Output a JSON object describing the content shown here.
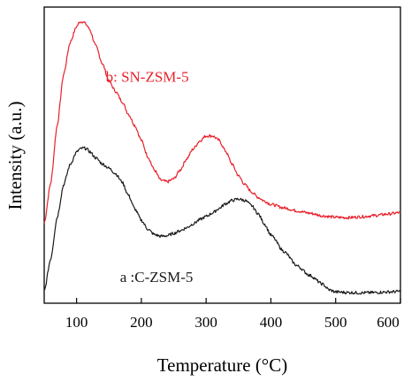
{
  "chart_data": {
    "type": "line",
    "xlabel": "Temperature (°C)",
    "ylabel": "Intensity (a.u.)",
    "xlim": [
      50,
      600
    ],
    "ylim": [
      0,
      1
    ],
    "x_ticks": [
      "100",
      "200",
      "300",
      "400",
      "500",
      "600"
    ],
    "y_ticks_shown": false,
    "grid": false,
    "series": [
      {
        "name": "b: SN-ZSM-5",
        "color": "#e8202a",
        "points": [
          [
            50,
            0.27
          ],
          [
            60,
            0.405
          ],
          [
            70,
            0.6
          ],
          [
            80,
            0.773
          ],
          [
            90,
            0.881
          ],
          [
            100,
            0.934
          ],
          [
            105,
            0.95
          ],
          [
            110,
            0.951
          ],
          [
            115,
            0.941
          ],
          [
            120,
            0.925
          ],
          [
            130,
            0.867
          ],
          [
            140,
            0.808
          ],
          [
            150,
            0.75
          ],
          [
            160,
            0.716
          ],
          [
            170,
            0.682
          ],
          [
            180,
            0.639
          ],
          [
            190,
            0.6
          ],
          [
            200,
            0.55
          ],
          [
            210,
            0.495
          ],
          [
            220,
            0.45
          ],
          [
            230,
            0.415
          ],
          [
            240,
            0.41
          ],
          [
            250,
            0.42
          ],
          [
            260,
            0.45
          ],
          [
            270,
            0.488
          ],
          [
            280,
            0.521
          ],
          [
            290,
            0.548
          ],
          [
            300,
            0.565
          ],
          [
            310,
            0.565
          ],
          [
            320,
            0.55
          ],
          [
            330,
            0.514
          ],
          [
            340,
            0.47
          ],
          [
            350,
            0.43
          ],
          [
            360,
            0.4
          ],
          [
            370,
            0.376
          ],
          [
            380,
            0.358
          ],
          [
            390,
            0.345
          ],
          [
            400,
            0.334
          ],
          [
            420,
            0.322
          ],
          [
            440,
            0.312
          ],
          [
            460,
            0.304
          ],
          [
            480,
            0.295
          ],
          [
            500,
            0.29
          ],
          [
            520,
            0.289
          ],
          [
            540,
            0.292
          ],
          [
            560,
            0.296
          ],
          [
            580,
            0.301
          ],
          [
            600,
            0.306
          ]
        ]
      },
      {
        "name": "a :C-ZSM-5",
        "color": "#1a1a1a",
        "points": [
          [
            50,
            0.04
          ],
          [
            60,
            0.15
          ],
          [
            70,
            0.29
          ],
          [
            80,
            0.4
          ],
          [
            90,
            0.468
          ],
          [
            100,
            0.51
          ],
          [
            105,
            0.52
          ],
          [
            110,
            0.524
          ],
          [
            115,
            0.522
          ],
          [
            120,
            0.512
          ],
          [
            130,
            0.49
          ],
          [
            140,
            0.47
          ],
          [
            150,
            0.456
          ],
          [
            160,
            0.438
          ],
          [
            170,
            0.41
          ],
          [
            180,
            0.365
          ],
          [
            190,
            0.318
          ],
          [
            200,
            0.28
          ],
          [
            210,
            0.25
          ],
          [
            220,
            0.232
          ],
          [
            230,
            0.226
          ],
          [
            240,
            0.228
          ],
          [
            250,
            0.236
          ],
          [
            260,
            0.245
          ],
          [
            270,
            0.255
          ],
          [
            280,
            0.268
          ],
          [
            290,
            0.282
          ],
          [
            300,
            0.293
          ],
          [
            310,
            0.305
          ],
          [
            320,
            0.32
          ],
          [
            330,
            0.336
          ],
          [
            340,
            0.347
          ],
          [
            350,
            0.352
          ],
          [
            360,
            0.347
          ],
          [
            370,
            0.33
          ],
          [
            380,
            0.303
          ],
          [
            390,
            0.268
          ],
          [
            400,
            0.23
          ],
          [
            420,
            0.175
          ],
          [
            440,
            0.127
          ],
          [
            460,
            0.094
          ],
          [
            480,
            0.064
          ],
          [
            490,
            0.045
          ],
          [
            500,
            0.038
          ],
          [
            520,
            0.036
          ],
          [
            540,
            0.035
          ],
          [
            560,
            0.036
          ],
          [
            580,
            0.038
          ],
          [
            600,
            0.04
          ]
        ]
      }
    ],
    "annotations": [
      {
        "text": "b: SN-ZSM-5",
        "series": 0,
        "x": 145,
        "y": 0.748,
        "color": "#e8202a"
      },
      {
        "text": "a :C-ZSM-5",
        "series": 1,
        "x": 167,
        "y": 0.072,
        "color": "#1a1a1a"
      }
    ]
  }
}
